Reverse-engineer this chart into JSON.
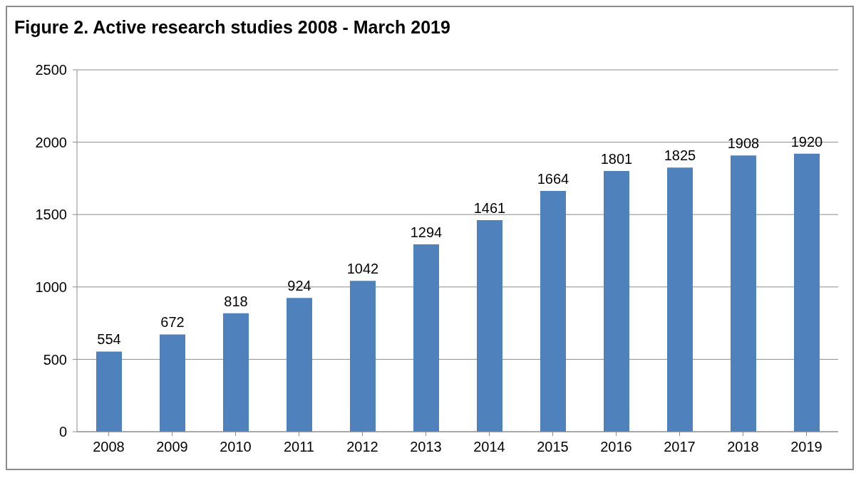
{
  "chart_data": {
    "type": "bar",
    "title": "Figure 2. Active research studies 2008 - March 2019",
    "categories": [
      "2008",
      "2009",
      "2010",
      "2011",
      "2012",
      "2013",
      "2014",
      "2015",
      "2016",
      "2017",
      "2018",
      "2019"
    ],
    "values": [
      554,
      672,
      818,
      924,
      1042,
      1294,
      1461,
      1664,
      1801,
      1825,
      1908,
      1920
    ],
    "color": "#4f81bd",
    "ylim": [
      0,
      2500
    ],
    "yticks": [
      0,
      500,
      1000,
      1500,
      2000,
      2500
    ],
    "grid": "y",
    "data_labels": true
  }
}
